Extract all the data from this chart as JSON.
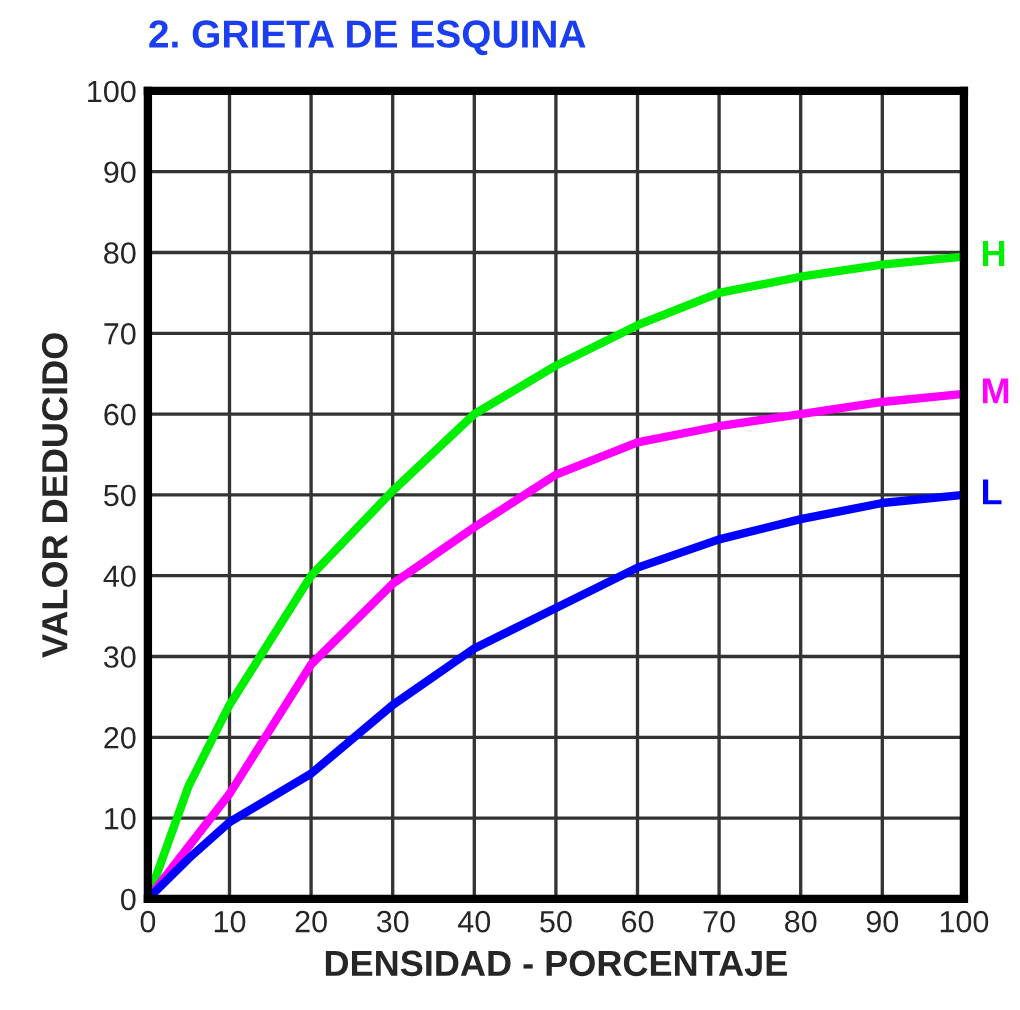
{
  "chart_data": {
    "type": "line",
    "title": "2. GRIETA DE ESQUINA",
    "xlabel": "DENSIDAD - PORCENTAJE",
    "ylabel": "VALOR DEDUCIDO",
    "x": [
      0,
      5,
      10,
      20,
      30,
      40,
      50,
      60,
      70,
      80,
      90,
      100
    ],
    "series": [
      {
        "name": "H",
        "color": "#00ee00",
        "values": [
          0,
          14,
          24,
          40,
          50.5,
          60,
          66,
          71,
          75,
          77,
          78.5,
          79.5
        ]
      },
      {
        "name": "M",
        "color": "#ff00ff",
        "values": [
          0,
          6.5,
          13,
          29,
          39,
          46,
          52.5,
          56.5,
          58.5,
          60,
          61.5,
          62.5
        ]
      },
      {
        "name": "L",
        "color": "#0000ff",
        "values": [
          0,
          5,
          9.5,
          15.5,
          24,
          31,
          36,
          41,
          44.5,
          47,
          49,
          50
        ]
      }
    ],
    "xlim": [
      0,
      100
    ],
    "ylim": [
      0,
      100
    ],
    "xticks": [
      0,
      10,
      20,
      30,
      40,
      50,
      60,
      70,
      80,
      90,
      100
    ],
    "yticks": [
      0,
      10,
      20,
      30,
      40,
      50,
      60,
      70,
      80,
      90,
      100
    ],
    "grid": true,
    "legend": false,
    "marker": "none",
    "line_style": "solid"
  }
}
